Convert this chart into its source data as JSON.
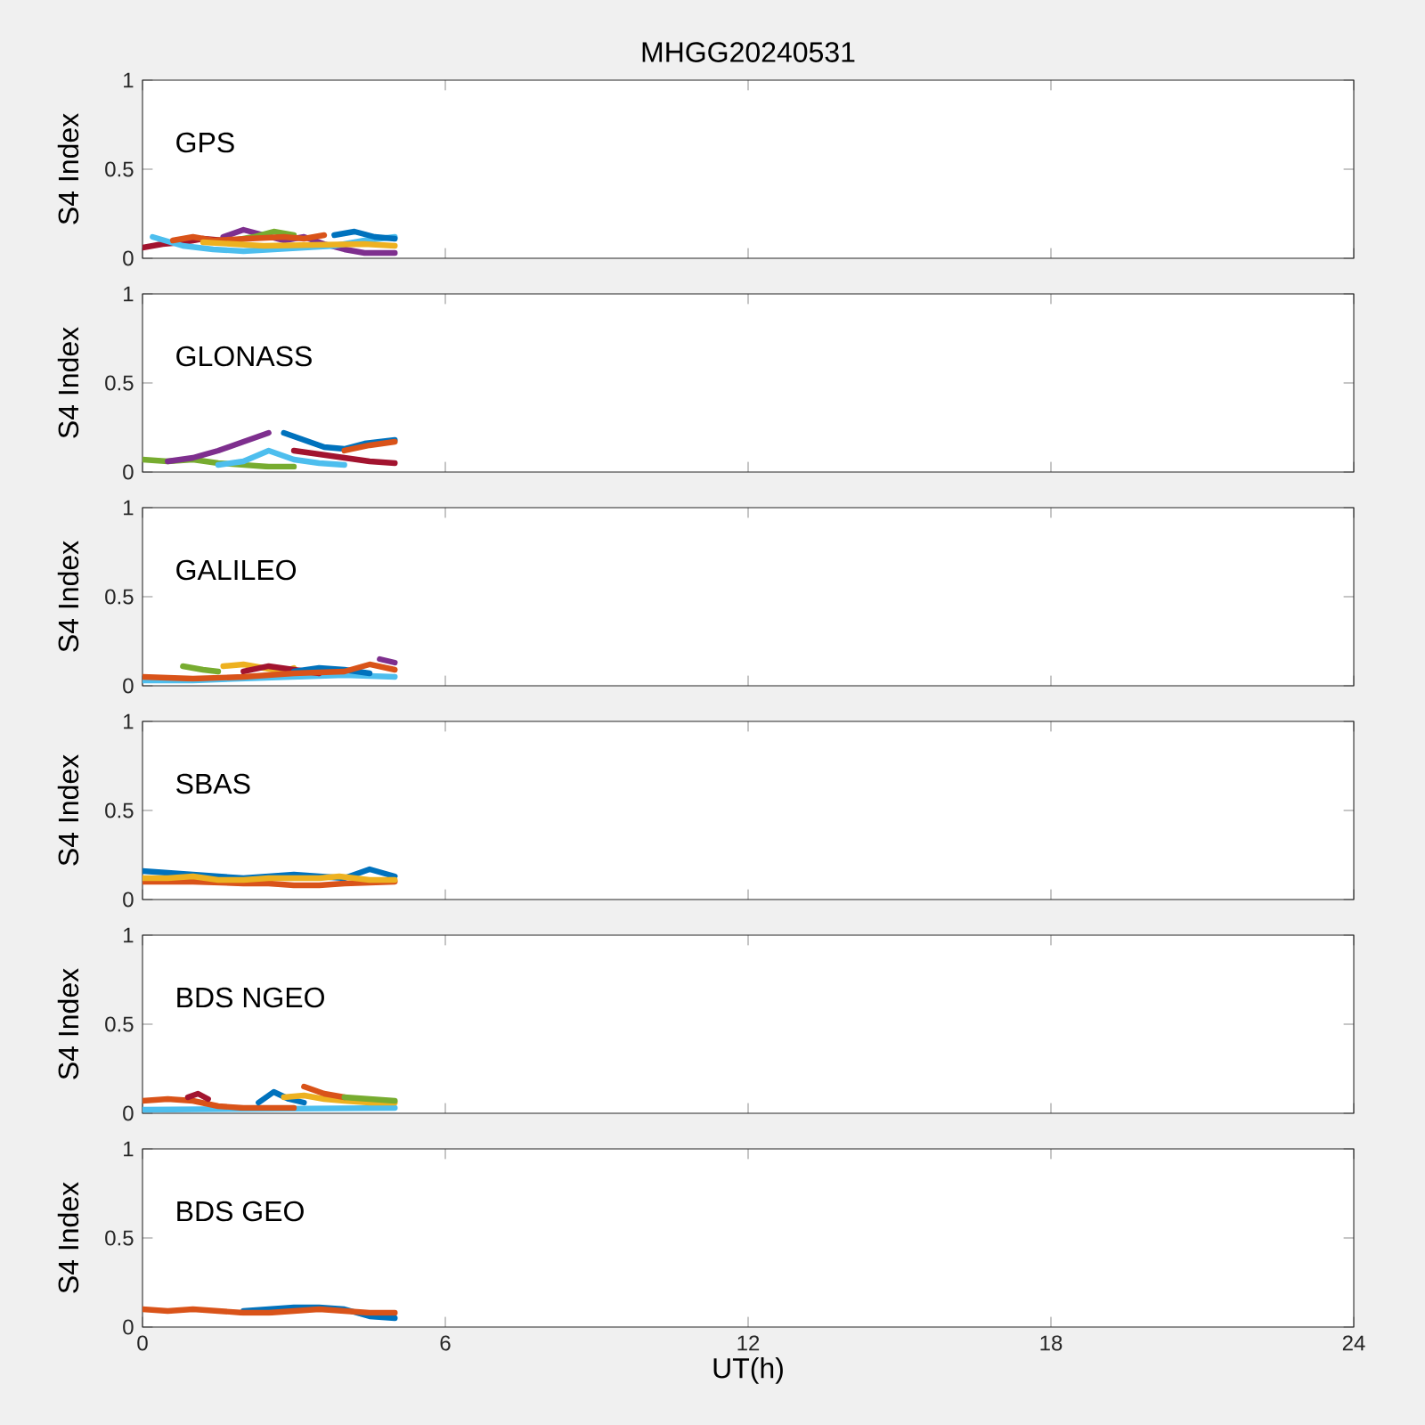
{
  "chart_data": [
    {
      "type": "line",
      "title": "MHGG20240531",
      "ylabel": "S4 Index",
      "annotations": [
        "GPS"
      ],
      "xlim": [
        0,
        24
      ],
      "xticks": [
        0,
        6,
        12,
        18,
        24
      ],
      "ylim": [
        0,
        1
      ],
      "yticks": [
        0,
        0.5,
        1
      ],
      "tick_labels": "y",
      "series": [
        {
          "color": "#a2142f",
          "x": [
            0,
            0.4,
            0.8,
            1.2,
            1.6
          ],
          "values": [
            0.06,
            0.08,
            0.09,
            0.11,
            0.1
          ]
        },
        {
          "color": "#7e2f8e",
          "x": [
            1.6,
            2.0,
            2.4,
            2.8,
            3.2,
            3.6,
            4.0,
            4.4,
            5.0
          ],
          "values": [
            0.12,
            0.16,
            0.13,
            0.1,
            0.12,
            0.08,
            0.05,
            0.03,
            0.03
          ]
        },
        {
          "color": "#77ac30",
          "x": [
            1.8,
            2.2,
            2.6,
            3.0
          ],
          "values": [
            0.1,
            0.12,
            0.15,
            0.13
          ]
        },
        {
          "color": "#4dbeee",
          "x": [
            0.2,
            0.8,
            1.4,
            2.0,
            2.6,
            3.2,
            3.8,
            4.4,
            5.0
          ],
          "values": [
            0.12,
            0.07,
            0.05,
            0.04,
            0.05,
            0.06,
            0.07,
            0.1,
            0.12
          ]
        },
        {
          "color": "#0072bd",
          "x": [
            3.8,
            4.2,
            4.6,
            5.0
          ],
          "values": [
            0.13,
            0.15,
            0.12,
            0.11
          ]
        },
        {
          "color": "#d95319",
          "x": [
            0.6,
            1.0,
            1.4,
            2.8,
            3.2,
            3.6
          ],
          "values": [
            0.1,
            0.12,
            0.1,
            0.12,
            0.11,
            0.13
          ]
        },
        {
          "color": "#edb120",
          "x": [
            1.2,
            1.8,
            2.4,
            4.4,
            5.0
          ],
          "values": [
            0.09,
            0.08,
            0.07,
            0.08,
            0.07
          ]
        }
      ]
    },
    {
      "type": "line",
      "ylabel": "S4 Index",
      "annotations": [
        "GLONASS"
      ],
      "xlim": [
        0,
        24
      ],
      "xticks": [
        0,
        6,
        12,
        18,
        24
      ],
      "ylim": [
        0,
        1
      ],
      "yticks": [
        0,
        0.5,
        1
      ],
      "tick_labels": "y",
      "series": [
        {
          "color": "#77ac30",
          "x": [
            0,
            0.5,
            1.0,
            1.5,
            2.0,
            2.5,
            3.0
          ],
          "values": [
            0.07,
            0.06,
            0.07,
            0.05,
            0.04,
            0.03,
            0.03
          ]
        },
        {
          "color": "#7e2f8e",
          "x": [
            0.5,
            1.0,
            1.5,
            2.0,
            2.5
          ],
          "values": [
            0.06,
            0.08,
            0.12,
            0.17,
            0.22
          ]
        },
        {
          "color": "#4dbeee",
          "x": [
            1.5,
            2.0,
            2.5,
            3.0,
            3.5,
            4.0
          ],
          "values": [
            0.04,
            0.06,
            0.12,
            0.07,
            0.05,
            0.04
          ]
        },
        {
          "color": "#0072bd",
          "x": [
            2.8,
            3.2,
            3.6,
            4.0,
            4.4,
            5.0
          ],
          "values": [
            0.22,
            0.18,
            0.14,
            0.13,
            0.16,
            0.18
          ]
        },
        {
          "color": "#a2142f",
          "x": [
            3.0,
            3.5,
            4.0,
            4.5,
            5.0
          ],
          "values": [
            0.12,
            0.1,
            0.08,
            0.06,
            0.05
          ]
        },
        {
          "color": "#d95319",
          "x": [
            4.0,
            4.5,
            5.0
          ],
          "values": [
            0.12,
            0.15,
            0.17
          ]
        }
      ]
    },
    {
      "type": "line",
      "ylabel": "S4 Index",
      "annotations": [
        "GALILEO"
      ],
      "xlim": [
        0,
        24
      ],
      "xticks": [
        0,
        6,
        12,
        18,
        24
      ],
      "ylim": [
        0,
        1
      ],
      "yticks": [
        0,
        0.5,
        1
      ],
      "tick_labels": "y",
      "series": [
        {
          "color": "#4dbeee",
          "x": [
            0,
            1,
            2,
            3,
            4,
            5
          ],
          "values": [
            0.03,
            0.03,
            0.04,
            0.05,
            0.06,
            0.05
          ]
        },
        {
          "color": "#77ac30",
          "x": [
            0.8,
            1.2,
            1.5
          ],
          "values": [
            0.11,
            0.09,
            0.08
          ]
        },
        {
          "color": "#edb120",
          "x": [
            1.6,
            2.0,
            2.8,
            3.0
          ],
          "values": [
            0.11,
            0.12,
            0.08,
            0.1
          ]
        },
        {
          "color": "#a2142f",
          "x": [
            2.0,
            2.5,
            3.0,
            3.5
          ],
          "values": [
            0.08,
            0.11,
            0.09,
            0.07
          ]
        },
        {
          "color": "#0072bd",
          "x": [
            3.0,
            3.5,
            4.0,
            4.5
          ],
          "values": [
            0.08,
            0.1,
            0.09,
            0.07
          ]
        },
        {
          "color": "#d95319",
          "x": [
            0,
            1,
            2,
            3,
            4,
            4.5,
            5
          ],
          "values": [
            0.05,
            0.04,
            0.05,
            0.07,
            0.08,
            0.12,
            0.09
          ]
        },
        {
          "color": "#7e2f8e",
          "x": [
            4.7,
            5.0
          ],
          "values": [
            0.15,
            0.13
          ]
        }
      ]
    },
    {
      "type": "line",
      "ylabel": "S4 Index",
      "annotations": [
        "SBAS"
      ],
      "xlim": [
        0,
        24
      ],
      "xticks": [
        0,
        6,
        12,
        18,
        24
      ],
      "ylim": [
        0,
        1
      ],
      "yticks": [
        0,
        0.5,
        1
      ],
      "tick_labels": "y",
      "series": [
        {
          "color": "#0072bd",
          "x": [
            0,
            0.5,
            1.0,
            1.5,
            2.0,
            2.5,
            3.0,
            3.5,
            4.0,
            4.5,
            5.0
          ],
          "values": [
            0.16,
            0.15,
            0.14,
            0.13,
            0.12,
            0.13,
            0.14,
            0.13,
            0.12,
            0.17,
            0.13
          ]
        },
        {
          "color": "#d95319",
          "x": [
            0,
            1,
            2,
            2.5,
            3,
            3.5,
            4,
            5
          ],
          "values": [
            0.1,
            0.1,
            0.09,
            0.09,
            0.08,
            0.08,
            0.09,
            0.1
          ]
        },
        {
          "color": "#edb120",
          "x": [
            0,
            0.5,
            1,
            1.5,
            2,
            2.5,
            3,
            3.5,
            3.9,
            4.5,
            5
          ],
          "values": [
            0.12,
            0.12,
            0.13,
            0.11,
            0.11,
            0.12,
            0.12,
            0.12,
            0.13,
            0.11,
            0.11
          ]
        }
      ]
    },
    {
      "type": "line",
      "ylabel": "S4 Index",
      "annotations": [
        "BDS NGEO"
      ],
      "xlim": [
        0,
        24
      ],
      "xticks": [
        0,
        6,
        12,
        18,
        24
      ],
      "ylim": [
        0,
        1
      ],
      "yticks": [
        0,
        0.5,
        1
      ],
      "tick_labels": "y",
      "series": [
        {
          "color": "#4dbeee",
          "x": [
            0,
            5
          ],
          "values": [
            0.02,
            0.03
          ]
        },
        {
          "color": "#d95319",
          "x": [
            0,
            0.5,
            1.0,
            1.5,
            2.0,
            2.5,
            3.0
          ],
          "values": [
            0.07,
            0.08,
            0.07,
            0.04,
            0.03,
            0.03,
            0.03
          ]
        },
        {
          "color": "#a2142f",
          "x": [
            0.9,
            1.1,
            1.3
          ],
          "values": [
            0.09,
            0.11,
            0.08
          ]
        },
        {
          "color": "#0072bd",
          "x": [
            2.3,
            2.6,
            2.9,
            3.2
          ],
          "values": [
            0.06,
            0.12,
            0.08,
            0.06
          ]
        },
        {
          "color": "#edb120",
          "x": [
            2.8,
            3.2,
            3.6,
            4.0,
            4.5,
            5.0
          ],
          "values": [
            0.09,
            0.1,
            0.08,
            0.07,
            0.06,
            0.06
          ]
        },
        {
          "color": "#d95319",
          "x": [
            3.2,
            3.6,
            4.0
          ],
          "values": [
            0.15,
            0.11,
            0.09
          ]
        },
        {
          "color": "#77ac30",
          "x": [
            4.0,
            4.5,
            5.0
          ],
          "values": [
            0.09,
            0.08,
            0.07
          ]
        }
      ]
    },
    {
      "type": "line",
      "ylabel": "S4 Index",
      "xlabel": "UT(h)",
      "annotations": [
        "BDS GEO"
      ],
      "xlim": [
        0,
        24
      ],
      "xticks": [
        0,
        6,
        12,
        18,
        24
      ],
      "ylim": [
        0,
        1
      ],
      "yticks": [
        0,
        0.5,
        1
      ],
      "series": [
        {
          "color": "#0072bd",
          "x": [
            2,
            2.5,
            3,
            3.5,
            4,
            4.5,
            5
          ],
          "values": [
            0.09,
            0.1,
            0.11,
            0.11,
            0.1,
            0.06,
            0.05
          ]
        },
        {
          "color": "#d95319",
          "x": [
            0,
            0.5,
            1,
            1.5,
            2,
            2.5,
            3,
            3.5,
            4,
            4.5,
            5
          ],
          "values": [
            0.1,
            0.09,
            0.1,
            0.09,
            0.08,
            0.08,
            0.09,
            0.1,
            0.09,
            0.08,
            0.08
          ]
        }
      ]
    }
  ]
}
